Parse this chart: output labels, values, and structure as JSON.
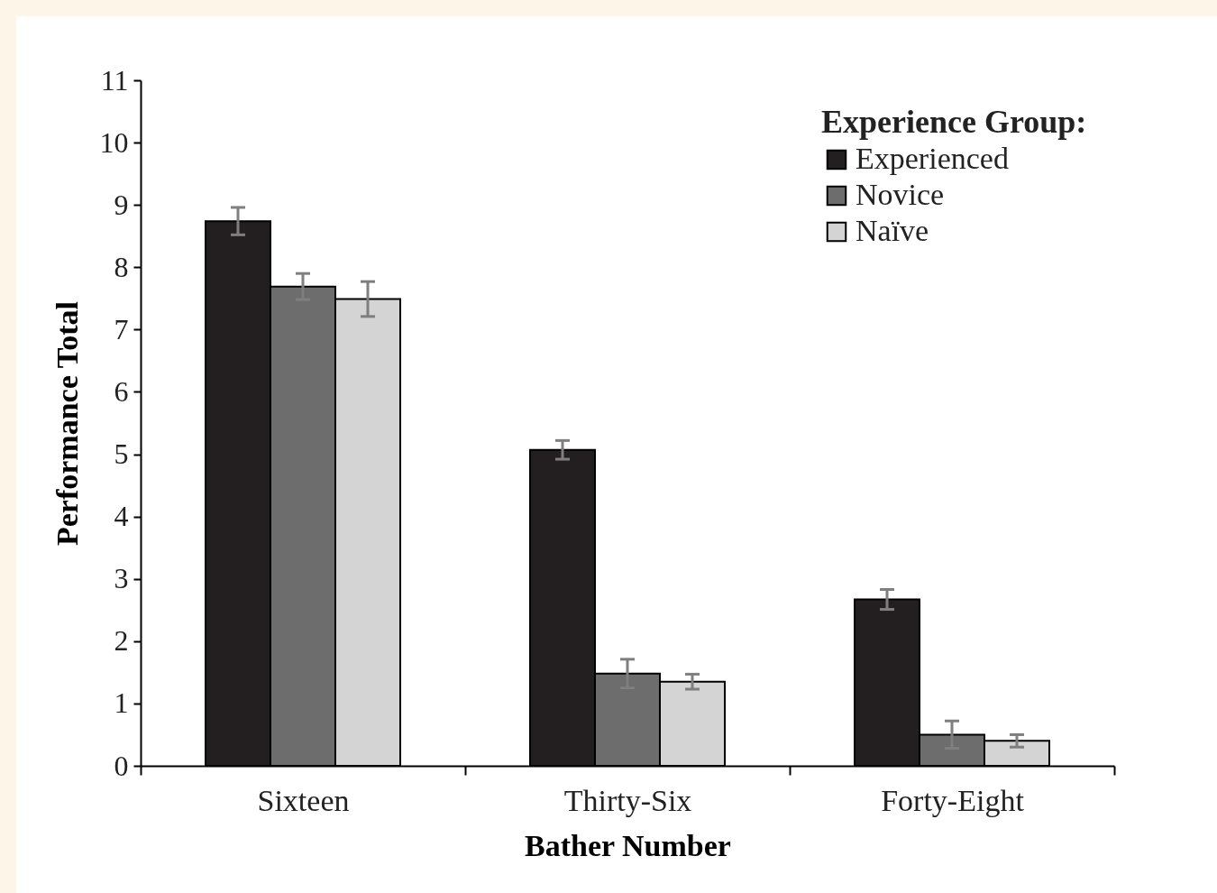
{
  "chart_data": {
    "type": "bar",
    "xlabel": "Bather Number",
    "ylabel": "Performance Total",
    "legend_title": "Experience Group:",
    "categories": [
      "Sixteen",
      "Thirty-Six",
      "Forty-Eight"
    ],
    "series": [
      {
        "name": "Experienced",
        "color": "#231f20",
        "values": [
          8.74,
          5.07,
          2.67
        ],
        "errors": [
          0.22,
          0.15,
          0.16
        ]
      },
      {
        "name": "Novice",
        "color": "#6d6d6d",
        "values": [
          7.69,
          1.48,
          0.5
        ],
        "errors": [
          0.21,
          0.23,
          0.22
        ]
      },
      {
        "name": "Naïve",
        "color": "#d4d4d4",
        "values": [
          7.49,
          1.35,
          0.4
        ],
        "errors": [
          0.28,
          0.12,
          0.1
        ]
      }
    ],
    "ylim": [
      0,
      11
    ],
    "yticks": [
      0,
      1,
      2,
      3,
      4,
      5,
      6,
      7,
      8,
      9,
      10,
      11
    ],
    "grid": false,
    "legend": "top right"
  }
}
